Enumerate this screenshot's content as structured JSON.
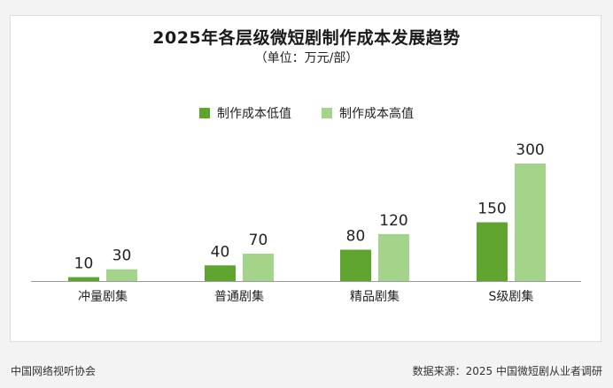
{
  "header": {
    "title": "2025年各层级微短剧制作成本发展趋势",
    "subtitle": "（单位：万元/部）"
  },
  "footer": {
    "left": "中国网络视听协会",
    "right": "数据来源：2025 中国微短剧从业者调研"
  },
  "colors": {
    "low": "#5ea42f",
    "high": "#a3d48a",
    "axis": "#9a9a9a",
    "text": "#222222"
  },
  "chart_data": {
    "type": "bar",
    "title": "2025年各层级微短剧制作成本发展趋势",
    "subtitle": "（单位：万元/部）",
    "categories": [
      "冲量剧集",
      "普通剧集",
      "精品剧集",
      "S级剧集"
    ],
    "series": [
      {
        "name": "制作成本低值",
        "values": [
          10,
          40,
          80,
          150
        ]
      },
      {
        "name": "制作成本高值",
        "values": [
          30,
          70,
          120,
          300
        ]
      }
    ],
    "ylim": [
      0,
      300
    ],
    "grid": false,
    "legend": "top-center"
  }
}
